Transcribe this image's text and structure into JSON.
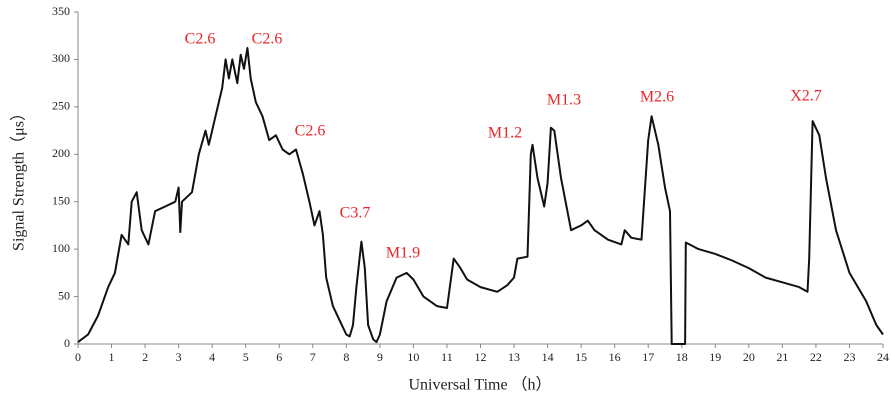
{
  "chart_data": {
    "type": "line",
    "x_label": "Universal Time （h）",
    "y_label": "Signal Strength（μs）",
    "x": [
      0,
      0.3,
      0.6,
      0.9,
      1.1,
      1.3,
      1.4,
      1.5,
      1.6,
      1.75,
      1.9,
      2.1,
      2.3,
      2.6,
      2.9,
      3.0,
      3.05,
      3.1,
      3.4,
      3.6,
      3.8,
      3.9,
      4.1,
      4.3,
      4.4,
      4.5,
      4.6,
      4.75,
      4.85,
      4.95,
      5.05,
      5.15,
      5.3,
      5.5,
      5.7,
      5.9,
      6.1,
      6.3,
      6.5,
      6.7,
      6.9,
      7.05,
      7.2,
      7.3,
      7.4,
      7.6,
      7.8,
      8.0,
      8.1,
      8.2,
      8.3,
      8.45,
      8.55,
      8.65,
      8.8,
      8.9,
      9.0,
      9.2,
      9.5,
      9.8,
      10.0,
      10.3,
      10.7,
      11.0,
      11.2,
      11.4,
      11.6,
      12.0,
      12.5,
      12.8,
      13.0,
      13.1,
      13.4,
      13.5,
      13.55,
      13.7,
      13.9,
      14.0,
      14.1,
      14.2,
      14.4,
      14.7,
      15.0,
      15.2,
      15.4,
      15.8,
      16.2,
      16.3,
      16.5,
      16.8,
      17.0,
      17.1,
      17.3,
      17.5,
      17.65,
      17.7,
      18.1,
      18.12,
      18.5,
      19,
      19.5,
      20,
      20.5,
      21,
      21.5,
      21.75,
      21.8,
      21.9,
      22.1,
      22.3,
      22.6,
      23,
      23.5,
      23.8,
      24
    ],
    "series": [
      {
        "color": "#111111",
        "values": [
          2,
          10,
          30,
          60,
          75,
          115,
          110,
          105,
          150,
          160,
          120,
          105,
          140,
          145,
          150,
          165,
          118,
          150,
          160,
          200,
          225,
          210,
          240,
          270,
          300,
          280,
          300,
          275,
          305,
          290,
          312,
          280,
          255,
          240,
          215,
          220,
          205,
          200,
          205,
          180,
          150,
          125,
          140,
          115,
          70,
          40,
          25,
          10,
          8,
          20,
          60,
          108,
          80,
          20,
          5,
          2,
          10,
          45,
          70,
          75,
          68,
          50,
          40,
          38,
          90,
          80,
          68,
          60,
          55,
          62,
          70,
          90,
          92,
          200,
          210,
          175,
          145,
          170,
          228,
          225,
          175,
          120,
          125,
          130,
          120,
          110,
          105,
          120,
          112,
          110,
          215,
          240,
          210,
          165,
          140,
          0,
          0,
          107,
          100,
          95,
          88,
          80,
          70,
          65,
          60,
          55,
          90,
          235,
          220,
          175,
          120,
          75,
          45,
          20,
          10
        ]
      }
    ],
    "annotations": [
      "C2.6",
      "C2.6",
      "C2.6",
      "C3.7",
      "M1.9",
      "M1.2",
      "M1.3",
      "M2.6",
      "X2.7"
    ],
    "xlim": [
      0,
      24
    ],
    "xticks": [
      0,
      1,
      2,
      3,
      4,
      5,
      6,
      7,
      8,
      9,
      10,
      11,
      12,
      13,
      14,
      15,
      16,
      17,
      18,
      19,
      20,
      21,
      22,
      23,
      24
    ],
    "ylim": [
      0,
      350
    ],
    "yticks": [
      0,
      50,
      100,
      150,
      200,
      250,
      300,
      350
    ]
  }
}
